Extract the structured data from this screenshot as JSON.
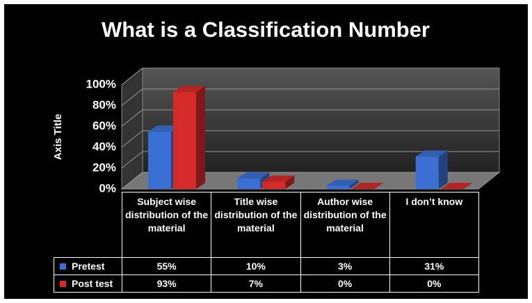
{
  "chart_data": {
    "type": "bar3d",
    "title": "What is a Classification Number",
    "y_axis_label": "Axis Title",
    "categories": [
      "Subject wise distribution of the material",
      "Title wise distribution of the material",
      "Author wise distribution of the material",
      "I don’t know"
    ],
    "series": [
      {
        "name": "Pretest",
        "color": "#3b6fd4",
        "values": [
          55,
          10,
          3,
          31
        ],
        "value_labels": [
          "55%",
          "10%",
          "3%",
          "31%"
        ]
      },
      {
        "name": "Post test",
        "color": "#d42a2a",
        "values": [
          93,
          7,
          0,
          0
        ],
        "value_labels": [
          "93%",
          "7%",
          "0%",
          "0%"
        ]
      }
    ],
    "ylim": [
      0,
      100
    ],
    "yticks": [
      {
        "value": 0,
        "label": "0%"
      },
      {
        "value": 20,
        "label": "20%"
      },
      {
        "value": 40,
        "label": "40%"
      },
      {
        "value": 60,
        "label": "60%"
      },
      {
        "value": 80,
        "label": "80%"
      },
      {
        "value": 100,
        "label": "100%"
      }
    ],
    "grid": true,
    "data_table": true
  }
}
